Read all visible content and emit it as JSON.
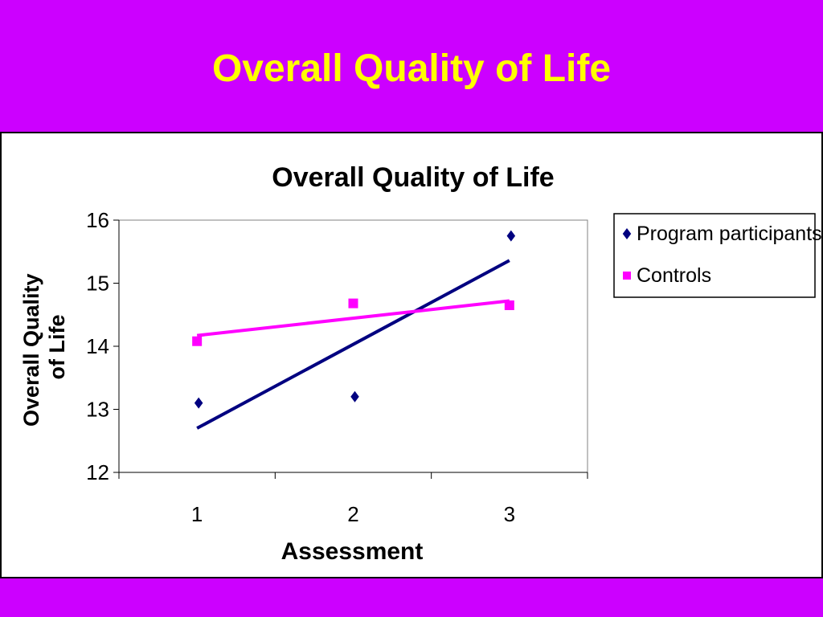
{
  "slide": {
    "title": "Overall Quality of Life"
  },
  "colors": {
    "background": "#CC00FF",
    "title": "#FFFF00",
    "series_participants": "#000080",
    "series_controls": "#FF00FF"
  },
  "chart_data": {
    "type": "scatter",
    "title": "Overall Quality of Life",
    "xlabel": "Assessment",
    "ylabel": "Overall Quality of Life",
    "categories": [
      "1",
      "2",
      "3"
    ],
    "ylim": [
      12,
      16
    ],
    "yticks": [
      "12",
      "13",
      "14",
      "15",
      "16"
    ],
    "grid": false,
    "legend_position": "right",
    "series": [
      {
        "name": "Program participants",
        "marker": "diamond",
        "color": "#000080",
        "values": [
          13.1,
          13.2,
          15.75
        ],
        "trendline": [
          12.7,
          14.03,
          15.36
        ]
      },
      {
        "name": "Controls",
        "marker": "square",
        "color": "#FF00FF",
        "values": [
          14.08,
          14.68,
          14.65
        ],
        "trendline": [
          14.17,
          14.45,
          14.72
        ]
      }
    ]
  }
}
